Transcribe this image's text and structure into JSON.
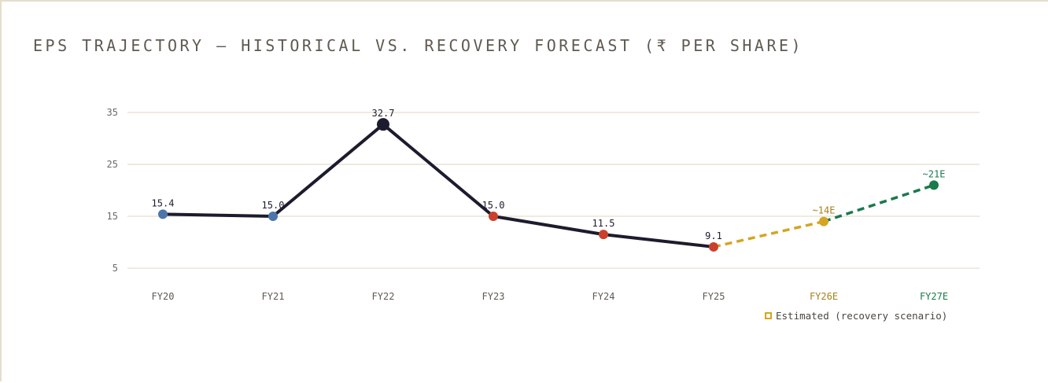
{
  "title": "EPS TRAJECTORY — HISTORICAL VS. RECOVERY FORECAST (₹ PER SHARE)",
  "legend": {
    "label": "Estimated (recovery scenario)",
    "swatch_color": "#d4a520"
  },
  "chart_data": {
    "type": "line",
    "title": "EPS TRAJECTORY — HISTORICAL VS. RECOVERY FORECAST (₹ PER SHARE)",
    "xlabel": "",
    "ylabel": "",
    "ylim": [
      5,
      35
    ],
    "yticks": [
      5,
      15,
      25,
      35
    ],
    "grid": true,
    "legend_position": "bottom-right",
    "categories": [
      "FY20",
      "FY21",
      "FY22",
      "FY23",
      "FY24",
      "FY25",
      "FY26E",
      "FY27E"
    ],
    "points": [
      {
        "x": "FY20",
        "y": 15.4,
        "label": "15.4",
        "marker_color": "#4a76ad",
        "tick_color": "#5f5a52",
        "label_color": "#1c1c2e",
        "estimated": false
      },
      {
        "x": "FY21",
        "y": 15.0,
        "label": "15.0",
        "marker_color": "#4a76ad",
        "tick_color": "#5f5a52",
        "label_color": "#1c1c2e",
        "estimated": false
      },
      {
        "x": "FY22",
        "y": 32.7,
        "label": "32.7",
        "marker_color": "#1c1c2e",
        "tick_color": "#5f5a52",
        "label_color": "#1c1c2e",
        "estimated": false,
        "large": true
      },
      {
        "x": "FY23",
        "y": 15.0,
        "label": "15.0",
        "marker_color": "#c9402c",
        "tick_color": "#5f5a52",
        "label_color": "#1c1c2e",
        "estimated": false
      },
      {
        "x": "FY24",
        "y": 11.5,
        "label": "11.5",
        "marker_color": "#c9402c",
        "tick_color": "#5f5a52",
        "label_color": "#1c1c2e",
        "estimated": false
      },
      {
        "x": "FY25",
        "y": 9.1,
        "label": "9.1",
        "marker_color": "#c9402c",
        "tick_color": "#5f5a52",
        "label_color": "#1c1c2e",
        "estimated": false
      },
      {
        "x": "FY26E",
        "y": 14,
        "label": "~14E",
        "marker_color": "#d4a520",
        "tick_color": "#a8801c",
        "label_color": "#a8801c",
        "estimated": true
      },
      {
        "x": "FY27E",
        "y": 21,
        "label": "~21E",
        "marker_color": "#1a7a4c",
        "tick_color": "#1a7a4c",
        "label_color": "#1a7a4c",
        "estimated": true
      }
    ],
    "colors": {
      "historical_line": "#1c1c2e",
      "estimate_segment_1": "#d4a520",
      "estimate_segment_2": "#1a7a4c",
      "grid": "#ebe4d6"
    }
  }
}
